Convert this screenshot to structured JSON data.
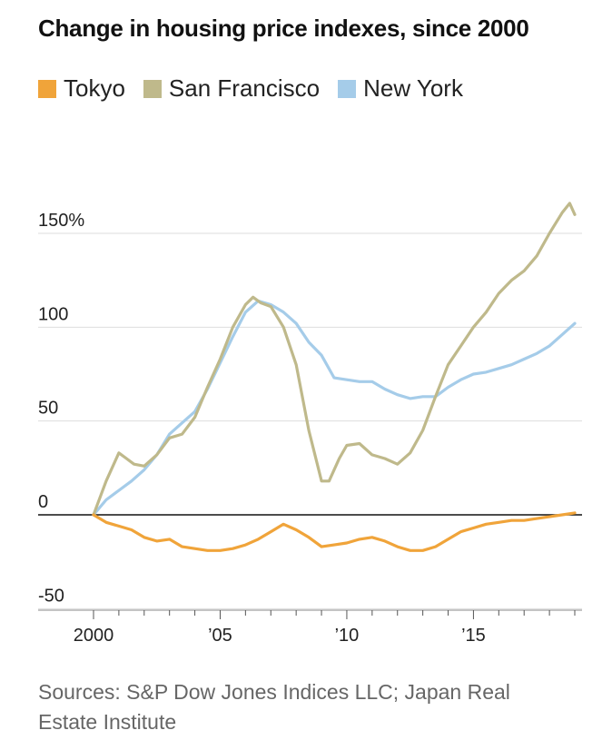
{
  "chart_data": {
    "type": "line",
    "title": "Change in housing price indexes, since 2000",
    "xlabel": "",
    "ylabel": "",
    "xlim": [
      2000,
      2019.2
    ],
    "ylim": [
      -50,
      175
    ],
    "x_ticks": [
      {
        "value": 2000,
        "label": "2000"
      },
      {
        "value": 2005,
        "label": "’05"
      },
      {
        "value": 2010,
        "label": "’10"
      },
      {
        "value": 2015,
        "label": "’15"
      }
    ],
    "y_ticks": [
      {
        "value": 150,
        "label": "150%"
      },
      {
        "value": 100,
        "label": "100"
      },
      {
        "value": 50,
        "label": "50"
      },
      {
        "value": 0,
        "label": "0"
      },
      {
        "value": -50,
        "label": "-50"
      }
    ],
    "series": [
      {
        "name": "Tokyo",
        "color": "#f0a43a",
        "x": [
          2000,
          2000.5,
          2001,
          2001.5,
          2002,
          2002.5,
          2003,
          2003.5,
          2004,
          2004.5,
          2005,
          2005.5,
          2006,
          2006.5,
          2007,
          2007.5,
          2008,
          2008.5,
          2009,
          2009.5,
          2010,
          2010.5,
          2011,
          2011.5,
          2012,
          2012.5,
          2013,
          2013.5,
          2014,
          2014.5,
          2015,
          2015.5,
          2016,
          2016.5,
          2017,
          2017.5,
          2018,
          2018.5,
          2019
        ],
        "values": [
          0,
          -4,
          -6,
          -8,
          -12,
          -14,
          -13,
          -17,
          -18,
          -19,
          -19,
          -18,
          -16,
          -13,
          -9,
          -5,
          -8,
          -12,
          -17,
          -16,
          -15,
          -13,
          -12,
          -14,
          -17,
          -19,
          -19,
          -17,
          -13,
          -9,
          -7,
          -5,
          -4,
          -3,
          -3,
          -2,
          -1,
          0,
          1
        ]
      },
      {
        "name": "San Francisco",
        "color": "#bfb98b",
        "x": [
          2000,
          2000.5,
          2001,
          2001.3,
          2001.6,
          2002,
          2002.5,
          2003,
          2003.5,
          2004,
          2004.5,
          2005,
          2005.5,
          2006,
          2006.3,
          2006.6,
          2007,
          2007.5,
          2008,
          2008.5,
          2009,
          2009.3,
          2009.7,
          2010,
          2010.5,
          2011,
          2011.5,
          2012,
          2012.5,
          2013,
          2013.5,
          2014,
          2014.5,
          2015,
          2015.5,
          2016,
          2016.5,
          2017,
          2017.5,
          2018,
          2018.5,
          2018.8,
          2019
        ],
        "values": [
          0,
          18,
          33,
          30,
          27,
          26,
          32,
          41,
          43,
          52,
          68,
          83,
          100,
          112,
          116,
          113,
          111,
          100,
          80,
          45,
          18,
          18,
          30,
          37,
          38,
          32,
          30,
          27,
          33,
          45,
          63,
          80,
          90,
          100,
          108,
          118,
          125,
          130,
          138,
          150,
          161,
          166,
          160
        ]
      },
      {
        "name": "New York",
        "color": "#a5cce9",
        "x": [
          2000,
          2000.5,
          2001,
          2001.5,
          2002,
          2002.5,
          2003,
          2003.5,
          2004,
          2004.5,
          2005,
          2005.5,
          2006,
          2006.5,
          2007,
          2007.5,
          2008,
          2008.5,
          2009,
          2009.5,
          2010,
          2010.5,
          2011,
          2011.5,
          2012,
          2012.5,
          2013,
          2013.5,
          2014,
          2014.5,
          2015,
          2015.5,
          2016,
          2016.5,
          2017,
          2017.5,
          2018,
          2018.5,
          2019
        ],
        "values": [
          0,
          8,
          13,
          18,
          24,
          32,
          43,
          49,
          55,
          67,
          81,
          95,
          108,
          114,
          112,
          108,
          102,
          92,
          85,
          73,
          72,
          71,
          71,
          67,
          64,
          62,
          63,
          63,
          68,
          72,
          75,
          76,
          78,
          80,
          83,
          86,
          90,
          96,
          102
        ]
      }
    ],
    "legend_position": "top-left",
    "grid": true
  },
  "source": "Sources: S&P Dow Jones Indices LLC; Japan Real Estate Institute"
}
